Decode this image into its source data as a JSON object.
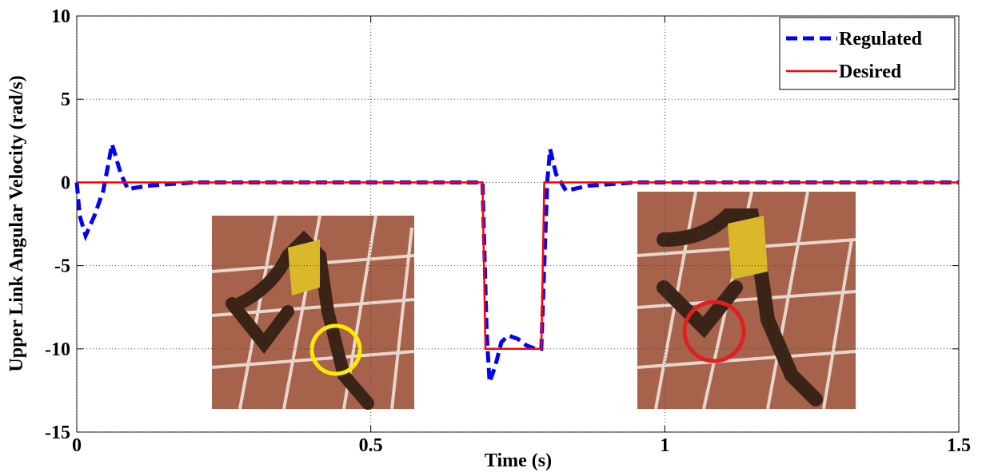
{
  "chart_data": {
    "type": "line",
    "xlabel": "Time (s)",
    "ylabel": "Upper Link Angular Velocity (rad/s)",
    "xlim": [
      0,
      1.5
    ],
    "ylim": [
      -15,
      10
    ],
    "xticks": [
      0,
      0.5,
      1,
      1.5
    ],
    "yticks": [
      -15,
      -10,
      -5,
      0,
      5,
      10
    ],
    "grid": true,
    "legend": "upper right",
    "series": [
      {
        "name": "Regulated",
        "color": "#0000ff",
        "style": "dashed",
        "x": [
          0,
          0.005,
          0.015,
          0.03,
          0.045,
          0.06,
          0.075,
          0.087,
          0.12,
          0.2,
          0.69,
          0.697,
          0.702,
          0.712,
          0.722,
          0.734,
          0.75,
          0.765,
          0.78,
          0.79,
          0.8,
          0.805,
          0.815,
          0.832,
          0.87,
          0.95,
          1.5
        ],
        "values": [
          0,
          -2,
          -3.2,
          -2,
          -0.5,
          2.3,
          0.5,
          -0.4,
          -0.2,
          0,
          0,
          -9,
          -12,
          -11,
          -9.6,
          -9.2,
          -9.4,
          -9.8,
          -10,
          -10,
          0,
          2,
          0.5,
          -0.5,
          -0.2,
          0,
          0
        ]
      },
      {
        "name": "Desired",
        "color": "#ff0000",
        "style": "solid",
        "x": [
          0,
          0.69,
          0.695,
          0.79,
          0.795,
          1.5
        ],
        "values": [
          0,
          0,
          -10,
          -10,
          0,
          0
        ]
      }
    ]
  }
}
